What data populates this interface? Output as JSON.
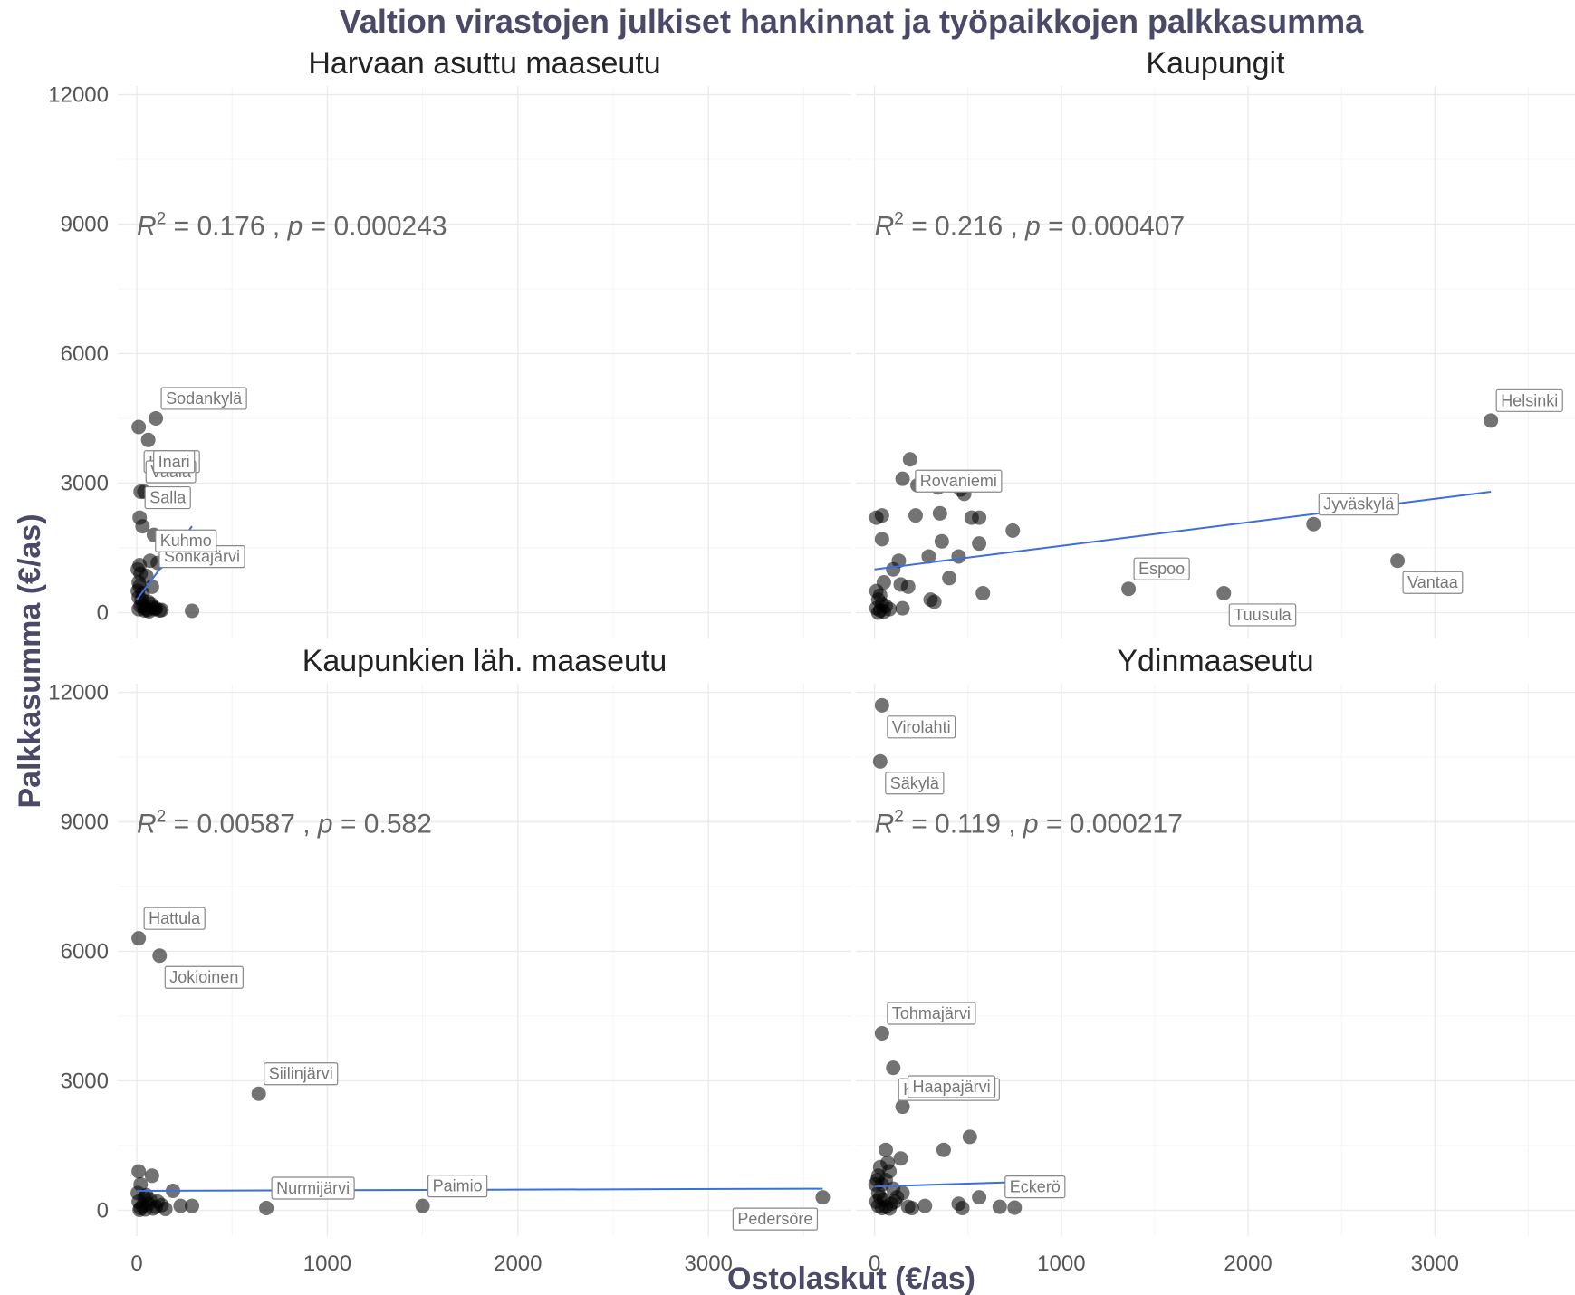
{
  "title": "Valtion virastojen julkiset hankinnat ja työpaikkojen palkkasumma",
  "xlabel": "Ostolaskut (€/as)",
  "ylabel": "Palkkasumma (€/as)",
  "colors": {
    "point": "#000000",
    "fit_line": "#3d6de0",
    "title": "#4a4a68"
  },
  "chart_data": {
    "type": "scatter",
    "facets": [
      {
        "name": "Harvaan asuttu maaseutu",
        "stat": {
          "r2": "0.176",
          "p": "0.000243"
        },
        "fit": {
          "x": [
            0,
            290
          ],
          "y": [
            300,
            2000
          ]
        },
        "points": [
          [
            10,
            4300
          ],
          [
            100,
            4500
          ],
          [
            60,
            4000
          ],
          [
            20,
            2800
          ],
          [
            40,
            2800
          ],
          [
            15,
            2200
          ],
          [
            30,
            2000
          ],
          [
            90,
            1800
          ],
          [
            70,
            1200
          ],
          [
            110,
            1150
          ],
          [
            20,
            900
          ],
          [
            50,
            850
          ],
          [
            10,
            700
          ],
          [
            80,
            600
          ],
          [
            30,
            450
          ],
          [
            10,
            350
          ],
          [
            60,
            250
          ],
          [
            20,
            150
          ],
          [
            10,
            80
          ],
          [
            40,
            50
          ],
          [
            100,
            100
          ],
          [
            130,
            60
          ],
          [
            290,
            40
          ],
          [
            5,
            500
          ],
          [
            15,
            600
          ],
          [
            25,
            300
          ],
          [
            35,
            150
          ],
          [
            45,
            100
          ],
          [
            55,
            60
          ],
          [
            65,
            30
          ],
          [
            75,
            200
          ],
          [
            85,
            120
          ],
          [
            95,
            80
          ],
          [
            5,
            1000
          ],
          [
            15,
            1100
          ],
          [
            120,
            50
          ]
        ],
        "labels": [
          {
            "text": "Sodankylä",
            "x": 100,
            "y": 4500
          },
          {
            "text": "Kokari",
            "x": 10,
            "y": 4000
          },
          {
            "text": "Vaala",
            "x": 20,
            "y": 2800
          },
          {
            "text": "Inari",
            "x": 60,
            "y": 4000
          },
          {
            "text": "Salla",
            "x": 15,
            "y": 2200
          },
          {
            "text": "Sonkajärvi",
            "x": 90,
            "y": 1800
          },
          {
            "text": "Kuhmo",
            "x": 70,
            "y": 1200
          }
        ]
      },
      {
        "name": "Kaupungit",
        "stat": {
          "r2": "0.216",
          "p": "0.000407"
        },
        "fit": {
          "x": [
            0,
            3300
          ],
          "y": [
            1000,
            2800
          ]
        },
        "points": [
          [
            3300,
            4450
          ],
          [
            2350,
            2050
          ],
          [
            2800,
            1200
          ],
          [
            1360,
            550
          ],
          [
            1870,
            450
          ],
          [
            190,
            3550
          ],
          [
            150,
            3100
          ],
          [
            230,
            2950
          ],
          [
            340,
            2900
          ],
          [
            460,
            2850
          ],
          [
            480,
            2750
          ],
          [
            10,
            2200
          ],
          [
            40,
            2250
          ],
          [
            220,
            2250
          ],
          [
            350,
            2300
          ],
          [
            520,
            2200
          ],
          [
            560,
            2200
          ],
          [
            740,
            1900
          ],
          [
            40,
            1700
          ],
          [
            360,
            1650
          ],
          [
            560,
            1600
          ],
          [
            130,
            1200
          ],
          [
            290,
            1300
          ],
          [
            450,
            1300
          ],
          [
            100,
            1000
          ],
          [
            50,
            700
          ],
          [
            140,
            650
          ],
          [
            180,
            600
          ],
          [
            400,
            800
          ],
          [
            580,
            450
          ],
          [
            300,
            300
          ],
          [
            320,
            250
          ],
          [
            150,
            100
          ],
          [
            10,
            500
          ],
          [
            30,
            400
          ],
          [
            20,
            300
          ],
          [
            40,
            200
          ],
          [
            60,
            150
          ],
          [
            10,
            100
          ],
          [
            30,
            50
          ],
          [
            80,
            80
          ],
          [
            20,
            0
          ],
          [
            50,
            20
          ]
        ],
        "labels": [
          {
            "text": "Helsinki",
            "x": 3300,
            "y": 4450
          },
          {
            "text": "Rovaniemi",
            "x": 190,
            "y": 3550
          },
          {
            "text": "Jyväskylä",
            "x": 2350,
            "y": 2050
          },
          {
            "text": "Vantaa",
            "x": 2800,
            "y": 1200
          },
          {
            "text": "Espoo",
            "x": 1360,
            "y": 550
          },
          {
            "text": "Tuusula",
            "x": 1870,
            "y": 450
          }
        ]
      },
      {
        "name": "Kaupunkien läh. maaseutu",
        "stat": {
          "r2": "0.00587",
          "p": "0.582"
        },
        "fit": {
          "x": [
            0,
            3600
          ],
          "y": [
            450,
            500
          ]
        },
        "points": [
          [
            10,
            6300
          ],
          [
            120,
            5900
          ],
          [
            640,
            2700
          ],
          [
            3600,
            300
          ],
          [
            1500,
            100
          ],
          [
            680,
            50
          ],
          [
            10,
            900
          ],
          [
            80,
            800
          ],
          [
            20,
            600
          ],
          [
            190,
            450
          ],
          [
            230,
            100
          ],
          [
            290,
            100
          ],
          [
            40,
            300
          ],
          [
            10,
            200
          ],
          [
            60,
            150
          ],
          [
            30,
            100
          ],
          [
            100,
            80
          ],
          [
            20,
            50
          ],
          [
            150,
            30
          ],
          [
            5,
            400
          ],
          [
            50,
            350
          ],
          [
            70,
            250
          ],
          [
            110,
            200
          ],
          [
            130,
            120
          ],
          [
            15,
            10
          ],
          [
            45,
            20
          ],
          [
            85,
            40
          ]
        ],
        "labels": [
          {
            "text": "Hattula",
            "x": 10,
            "y": 6300
          },
          {
            "text": "Jokioinen",
            "x": 120,
            "y": 5900
          },
          {
            "text": "Siilinjärvi",
            "x": 640,
            "y": 2700
          },
          {
            "text": "Pedersöre",
            "x": 3600,
            "y": 300
          },
          {
            "text": "Nurmijärvi",
            "x": 680,
            "y": 50
          },
          {
            "text": "Paimio",
            "x": 1500,
            "y": 100
          }
        ]
      },
      {
        "name": "Ydinmaaseutu",
        "stat": {
          "r2": "0.119",
          "p": "0.000217"
        },
        "fit": {
          "x": [
            0,
            750
          ],
          "y": [
            550,
            650
          ]
        },
        "points": [
          [
            40,
            11700
          ],
          [
            30,
            10400
          ],
          [
            40,
            4100
          ],
          [
            100,
            3300
          ],
          [
            150,
            2400
          ],
          [
            370,
            1400
          ],
          [
            510,
            1700
          ],
          [
            60,
            1400
          ],
          [
            140,
            1200
          ],
          [
            70,
            1100
          ],
          [
            30,
            1000
          ],
          [
            80,
            900
          ],
          [
            20,
            800
          ],
          [
            60,
            700
          ],
          [
            40,
            600
          ],
          [
            150,
            400
          ],
          [
            20,
            400
          ],
          [
            30,
            300
          ],
          [
            50,
            250
          ],
          [
            110,
            200
          ],
          [
            180,
            80
          ],
          [
            270,
            100
          ],
          [
            450,
            150
          ],
          [
            560,
            300
          ],
          [
            670,
            80
          ],
          [
            750,
            60
          ],
          [
            470,
            50
          ],
          [
            20,
            100
          ],
          [
            40,
            50
          ],
          [
            60,
            80
          ],
          [
            80,
            40
          ],
          [
            10,
            200
          ],
          [
            100,
            500
          ],
          [
            120,
            300
          ],
          [
            90,
            150
          ],
          [
            200,
            50
          ],
          [
            5,
            600
          ],
          [
            15,
            700
          ]
        ],
        "labels": [
          {
            "text": "Virolahti",
            "x": 40,
            "y": 11700
          },
          {
            "text": "Säkylä",
            "x": 30,
            "y": 10400
          },
          {
            "text": "Tohmajärvi",
            "x": 40,
            "y": 4100
          },
          {
            "text": "Kankaanpää",
            "x": 100,
            "y": 3300
          },
          {
            "text": "Haapajärvi",
            "x": 150,
            "y": 2400
          },
          {
            "text": "Eckerö",
            "x": 670,
            "y": 80
          }
        ]
      }
    ],
    "xlim": [
      -100,
      3750
    ],
    "ylim": [
      -600,
      12200
    ],
    "xticks": [
      0,
      1000,
      2000,
      3000
    ],
    "xtick_labels": [
      "0",
      "1000",
      "2000",
      "3000"
    ],
    "yticks": [
      0,
      3000,
      6000,
      9000,
      12000
    ],
    "ytick_labels": [
      "0",
      "3000",
      "6000",
      "9000",
      "12000"
    ],
    "grid": true,
    "legend": "none"
  }
}
